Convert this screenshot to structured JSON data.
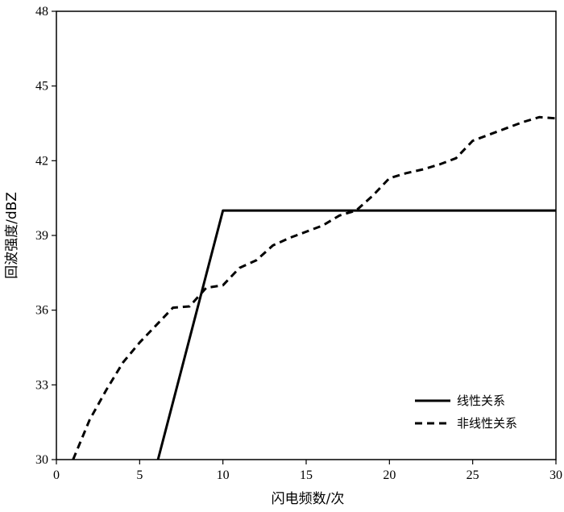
{
  "chart_data": {
    "type": "line",
    "xlabel": "闪电频数/次",
    "ylabel": "回波强度/dBZ",
    "xlim": [
      0,
      30
    ],
    "ylim": [
      30,
      48
    ],
    "xticks": [
      0,
      5,
      10,
      15,
      20,
      25,
      30
    ],
    "yticks": [
      30,
      33,
      36,
      39,
      42,
      45,
      48
    ],
    "grid": false,
    "legend_position": "bottom-right",
    "series": [
      {
        "name": "线性关系",
        "style": "solid",
        "color": "#000000",
        "x": [
          6.1,
          10,
          30
        ],
        "y": [
          30,
          40,
          40
        ]
      },
      {
        "name": "非线性关系",
        "style": "dashed",
        "color": "#000000",
        "x": [
          1,
          2,
          3,
          4,
          5,
          6,
          7,
          8,
          9,
          10,
          11,
          12,
          13,
          14,
          15,
          16,
          17,
          18,
          19,
          20,
          21,
          22,
          23,
          24,
          25,
          26,
          27,
          28,
          29,
          30
        ],
        "y": [
          30.0,
          31.6,
          32.8,
          33.9,
          34.7,
          35.4,
          36.1,
          36.15,
          36.9,
          37.0,
          37.7,
          38.0,
          38.6,
          38.9,
          39.15,
          39.4,
          39.8,
          40.0,
          40.6,
          41.3,
          41.5,
          41.65,
          41.85,
          42.1,
          42.8,
          43.05,
          43.3,
          43.55,
          43.75,
          43.7
        ]
      }
    ]
  }
}
